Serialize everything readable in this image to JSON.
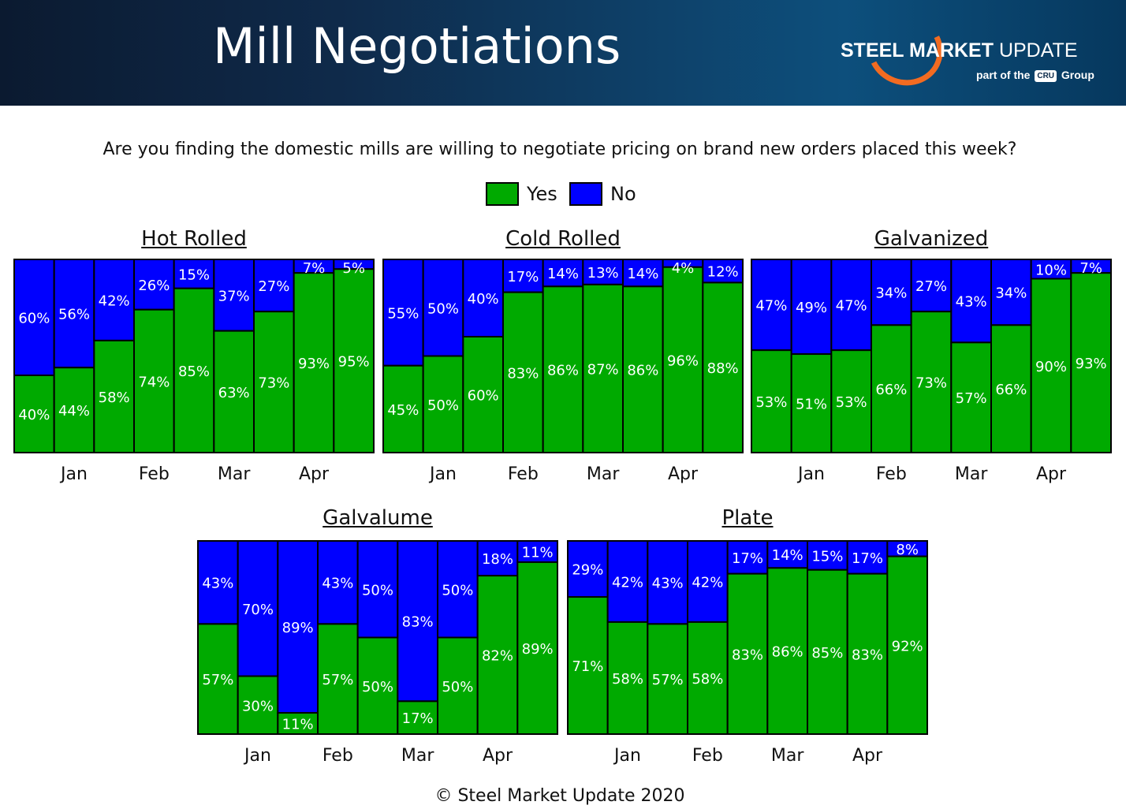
{
  "header": {
    "title": "Mill Negotiations",
    "logo_brand": "STEEL MARKET",
    "logo_brand_tail": "UPDATE",
    "logo_sub_pre": "part of the",
    "logo_sub_mark": "CRU",
    "logo_sub_post": "Group"
  },
  "question": "Are you finding the domestic mills are willing to negotiate pricing on brand new orders placed this week?",
  "legend": {
    "yes": "Yes",
    "no": "No"
  },
  "colors": {
    "yes": "#00aa00",
    "no": "#0000ff",
    "border": "#000000",
    "label": "#ffffff"
  },
  "footer": "© Steel Market Update 2020",
  "chart_data": [
    {
      "type": "bar",
      "stacked": true,
      "title": "Hot Rolled",
      "month_labels": [
        "Jan",
        "Feb",
        "Mar",
        "Apr"
      ],
      "series": [
        {
          "name": "Yes",
          "values": [
            40,
            44,
            58,
            74,
            85,
            63,
            73,
            93,
            95
          ]
        },
        {
          "name": "No",
          "values": [
            60,
            56,
            42,
            26,
            15,
            37,
            27,
            7,
            5
          ]
        }
      ],
      "ylim": [
        0,
        100
      ]
    },
    {
      "type": "bar",
      "stacked": true,
      "title": "Cold Rolled",
      "month_labels": [
        "Jan",
        "Feb",
        "Mar",
        "Apr"
      ],
      "series": [
        {
          "name": "Yes",
          "values": [
            45,
            50,
            60,
            83,
            86,
            87,
            86,
            96,
            88
          ]
        },
        {
          "name": "No",
          "values": [
            55,
            50,
            40,
            17,
            14,
            13,
            14,
            4,
            12
          ]
        }
      ],
      "ylim": [
        0,
        100
      ]
    },
    {
      "type": "bar",
      "stacked": true,
      "title": "Galvanized",
      "month_labels": [
        "Jan",
        "Feb",
        "Mar",
        "Apr"
      ],
      "series": [
        {
          "name": "Yes",
          "values": [
            53,
            51,
            53,
            66,
            73,
            57,
            66,
            90,
            93
          ]
        },
        {
          "name": "No",
          "values": [
            47,
            49,
            47,
            34,
            27,
            43,
            34,
            10,
            7
          ]
        }
      ],
      "ylim": [
        0,
        100
      ]
    },
    {
      "type": "bar",
      "stacked": true,
      "title": "Galvalume",
      "month_labels": [
        "Jan",
        "Feb",
        "Mar",
        "Apr"
      ],
      "series": [
        {
          "name": "Yes",
          "values": [
            57,
            30,
            11,
            57,
            50,
            17,
            50,
            82,
            89
          ]
        },
        {
          "name": "No",
          "values": [
            43,
            70,
            89,
            43,
            50,
            83,
            50,
            18,
            11
          ]
        }
      ],
      "ylim": [
        0,
        100
      ]
    },
    {
      "type": "bar",
      "stacked": true,
      "title": "Plate",
      "month_labels": [
        "Jan",
        "Feb",
        "Mar",
        "Apr"
      ],
      "series": [
        {
          "name": "Yes",
          "values": [
            71,
            58,
            57,
            58,
            83,
            86,
            85,
            83,
            92
          ]
        },
        {
          "name": "No",
          "values": [
            29,
            42,
            43,
            42,
            17,
            14,
            15,
            17,
            8
          ]
        }
      ],
      "ylim": [
        0,
        100
      ]
    }
  ]
}
